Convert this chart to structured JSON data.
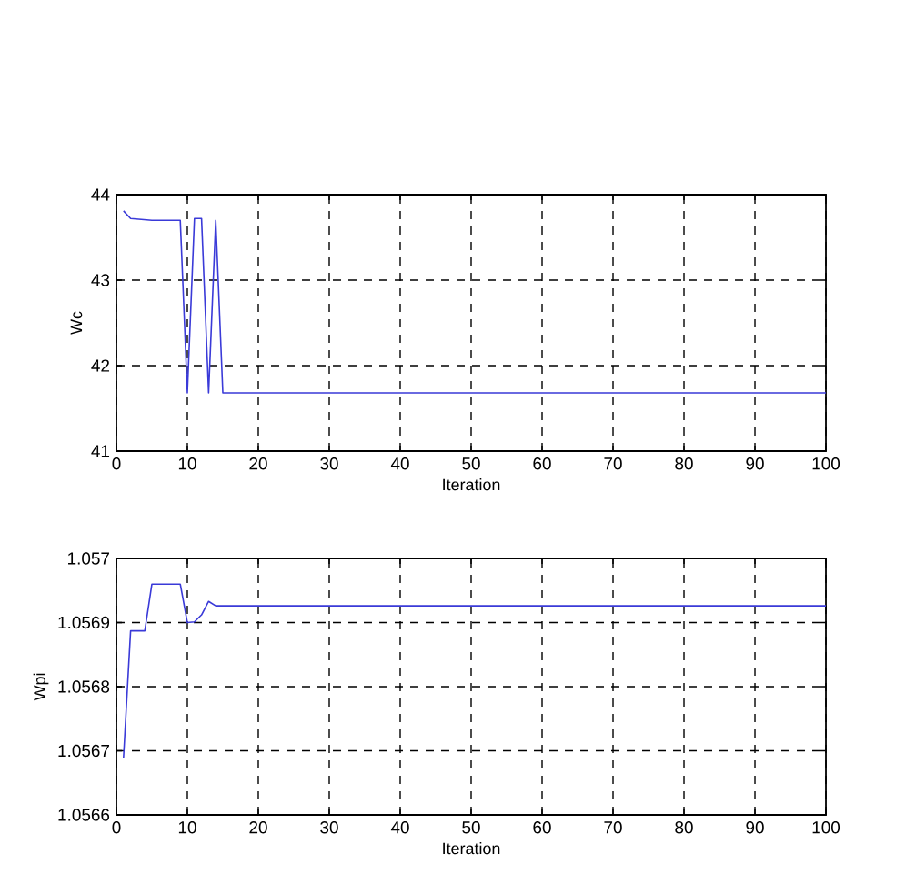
{
  "chart_data": [
    {
      "type": "line",
      "xlabel": "Iteration",
      "ylabel": "Wc",
      "x": [
        1,
        2,
        5,
        9,
        10,
        11,
        12,
        13,
        14,
        15,
        100
      ],
      "values": [
        43.81,
        43.72,
        43.7,
        43.7,
        41.68,
        43.72,
        43.72,
        41.68,
        43.7,
        41.68,
        41.68
      ],
      "color": "#3a3ad8",
      "xlim": [
        0,
        100
      ],
      "ylim": [
        41,
        44
      ],
      "xticks": [
        0,
        10,
        20,
        30,
        40,
        50,
        60,
        70,
        80,
        90,
        100
      ],
      "yticks": [
        41,
        42,
        43,
        44
      ],
      "grid": true
    },
    {
      "type": "line",
      "xlabel": "Iteration",
      "ylabel": "Wpi",
      "x": [
        1,
        2,
        4,
        5,
        9,
        10,
        11,
        12,
        13,
        14,
        100
      ],
      "values": [
        1.056689,
        1.056887,
        1.056887,
        1.05696,
        1.05696,
        1.0569,
        1.056901,
        1.056912,
        1.056933,
        1.056926,
        1.056926
      ],
      "color": "#3a3ad8",
      "xlim": [
        0,
        100
      ],
      "ylim": [
        1.0566,
        1.057
      ],
      "xticks": [
        0,
        10,
        20,
        30,
        40,
        50,
        60,
        70,
        80,
        90,
        100
      ],
      "yticks": [
        1.0566,
        1.0567,
        1.0568,
        1.0569,
        1.057
      ],
      "grid": true
    }
  ]
}
